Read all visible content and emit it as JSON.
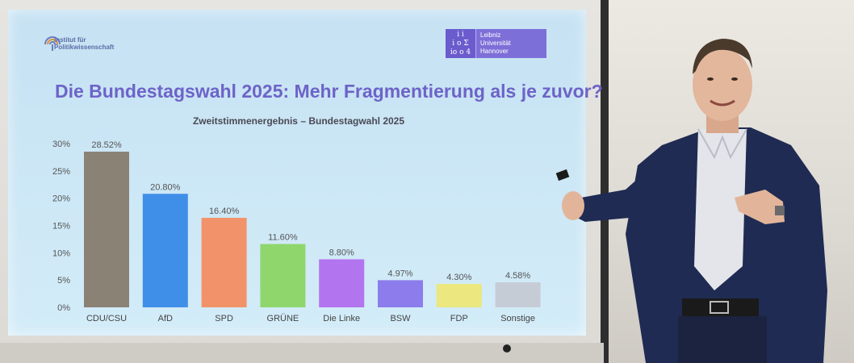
{
  "slide": {
    "title": "Die Bundestagswahl 2025: Mehr Fragmentierung als je zuvor?",
    "institute_logo_text": "Institut für\nPolitikwissenschaft",
    "university_logo_text": "Leibniz\nUniversität\nHannover",
    "university_mark_text": "i  i\ni o Σ\nio o 4"
  },
  "colors": {
    "title": "#6d63c8",
    "logo_purple": "#7d6fd8"
  },
  "chart_data": {
    "type": "bar",
    "title": "Zweitstimmenergebnis – Bundestagwahl 2025",
    "categories": [
      "CDU/CSU",
      "AfD",
      "SPD",
      "GRÜNE",
      "Die Linke",
      "BSW",
      "FDP",
      "Sonstige"
    ],
    "values": [
      28.52,
      20.8,
      16.4,
      11.6,
      8.8,
      4.97,
      4.3,
      4.58
    ],
    "value_labels": [
      "28.52%",
      "20.80%",
      "16.40%",
      "11.60%",
      "8.80%",
      "4.97%",
      "4.30%",
      "4.58%"
    ],
    "bar_colors": [
      "#8b8276",
      "#3f8fe8",
      "#f2926a",
      "#8fd66c",
      "#b374ef",
      "#8c7cec",
      "#ece77e",
      "#c6ccd6"
    ],
    "yticks": [
      0,
      5,
      10,
      15,
      20,
      25,
      30
    ],
    "ytick_labels": [
      "0%",
      "5%",
      "10%",
      "15%",
      "20%",
      "25%",
      "30%"
    ],
    "ylim": [
      0,
      30
    ],
    "xlabel": "",
    "ylabel": "",
    "grid": false
  }
}
